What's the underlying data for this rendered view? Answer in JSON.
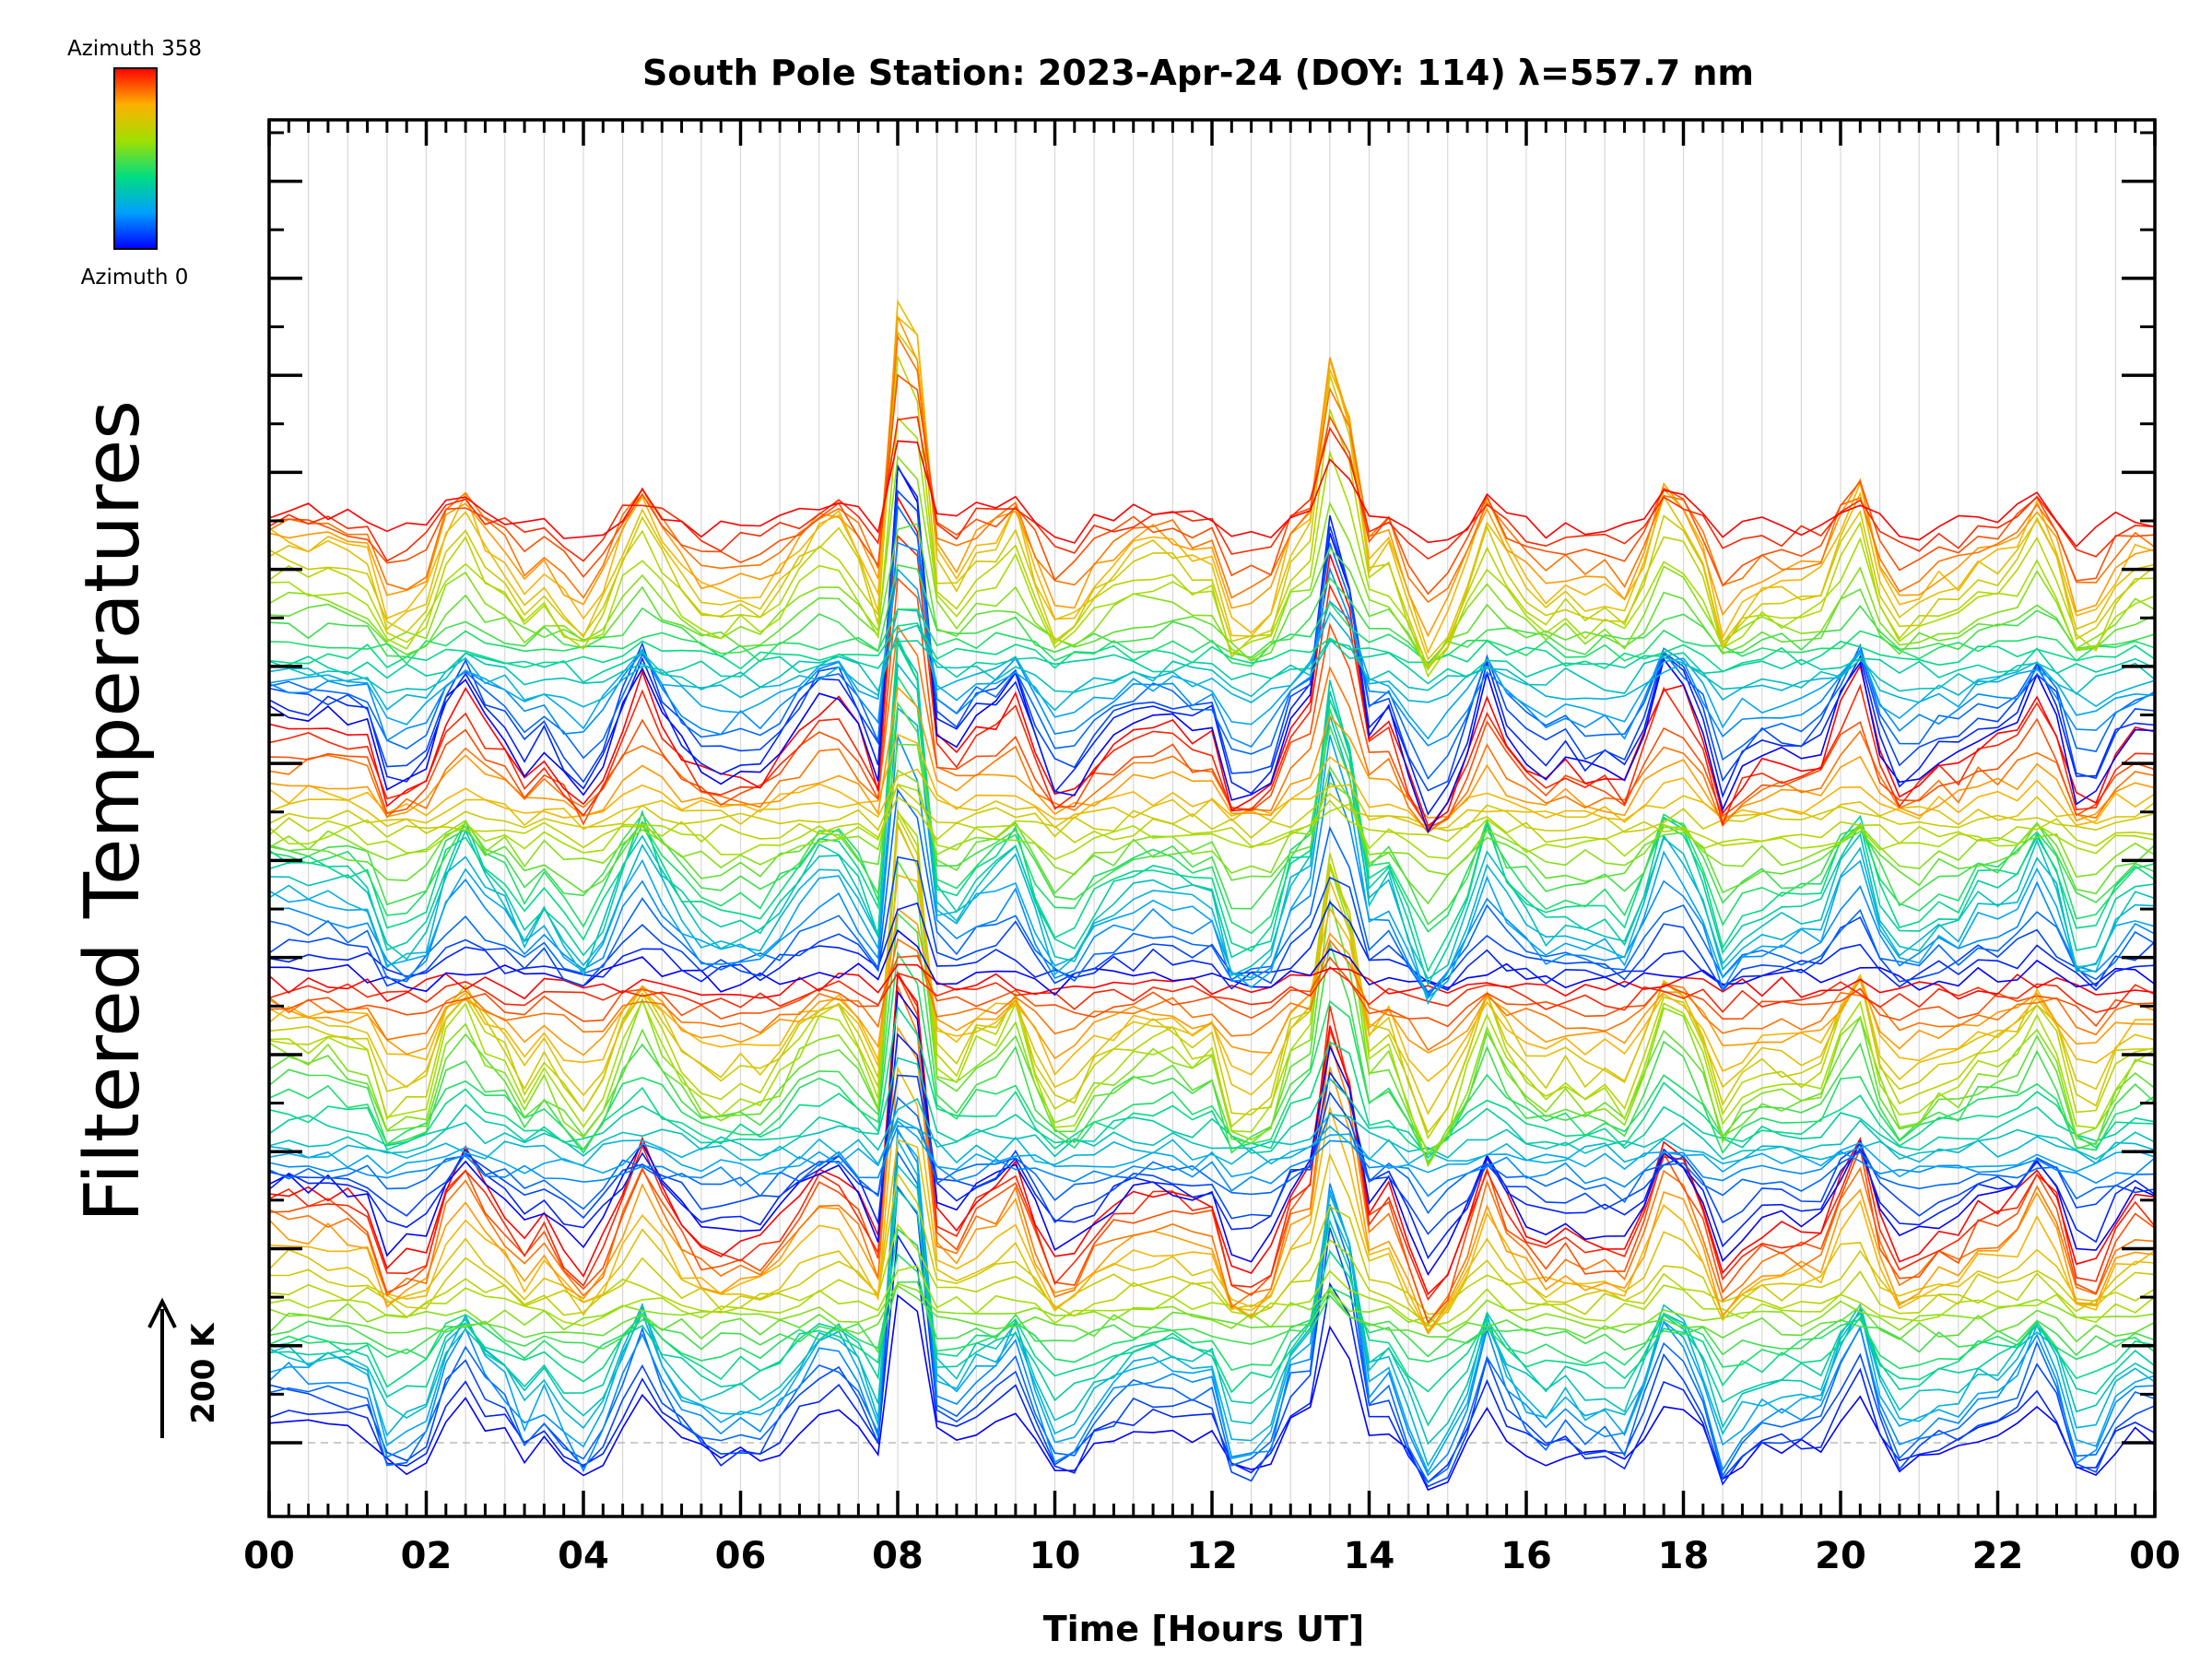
{
  "chart_data": {
    "type": "line",
    "title": "South Pole Station: 2023-Apr-24 (DOY: 114) λ=557.7 nm",
    "xlabel": "Time [Hours UT]",
    "ylabel": "Filtered Temperatures",
    "xlim": [
      0,
      24
    ],
    "x_ticks": [
      "00",
      "02",
      "04",
      "06",
      "08",
      "10",
      "12",
      "14",
      "16",
      "18",
      "20",
      "22",
      "00"
    ],
    "x_tick_values": [
      0,
      2,
      4,
      6,
      8,
      10,
      12,
      14,
      16,
      18,
      20,
      22,
      24
    ],
    "scale_bar": {
      "label": "200 K",
      "value_k": 200
    },
    "colorbar": {
      "top_label": "Azimuth 358",
      "bottom_label": "Azimuth 0",
      "min": 0,
      "max": 358,
      "colormap": "rainbow"
    },
    "series_count": 96,
    "series_per_group": 24,
    "groups": 4,
    "offset_k_per_series": 10,
    "sample_interval_hours": 0.25,
    "events": [
      {
        "hour": 8.1,
        "amplitude_k": 420,
        "label": ""
      },
      {
        "hour": 13.6,
        "amplitude_k": 250,
        "label": ""
      }
    ],
    "colors": {
      "series_low_azimuth": "#0000ff",
      "series_high_azimuth": "#ff0000",
      "axes": "#000000",
      "grid": "#d8d8d8",
      "baseline": "#bbbbbb"
    }
  }
}
